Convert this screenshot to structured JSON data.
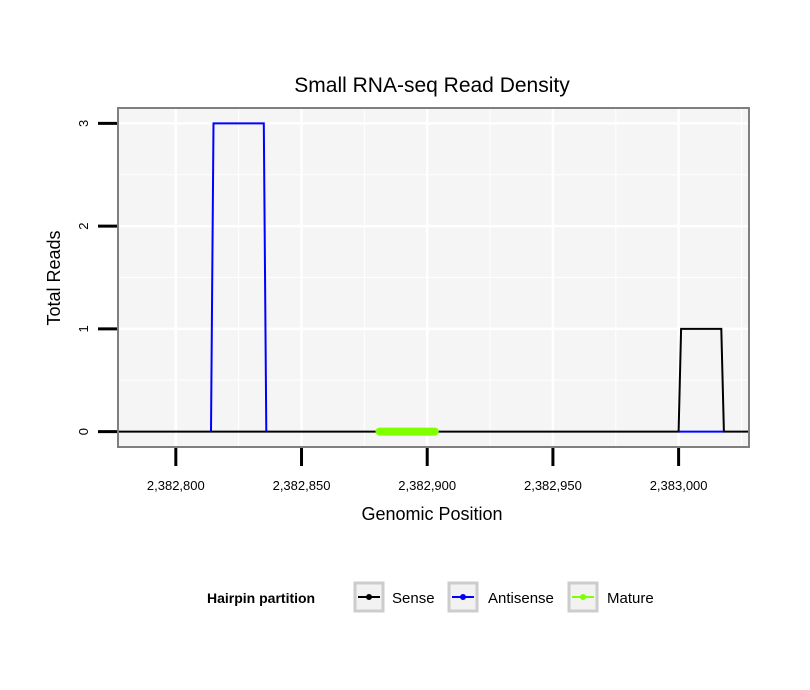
{
  "chart_data": {
    "type": "line",
    "title": "Small RNA-seq Read Density",
    "xlabel": "Genomic Position",
    "ylabel": "Total Reads",
    "xlim": [
      2382777,
      2383028
    ],
    "ylim": [
      -0.15,
      3.15
    ],
    "x_ticks": [
      2382800,
      2382850,
      2382900,
      2382950,
      2383000
    ],
    "x_tick_labels": [
      "2,382,800",
      "2,382,850",
      "2,382,900",
      "2,382,950",
      "2,383,000"
    ],
    "y_ticks": [
      0,
      1,
      2,
      3
    ],
    "y_tick_labels": [
      "0",
      "1",
      "2",
      "3"
    ],
    "grid": true,
    "legend": {
      "title": "Hairpin partition",
      "position": "bottom",
      "entries": [
        "Sense",
        "Antisense",
        "Mature"
      ]
    },
    "series": [
      {
        "name": "Sense",
        "color": "#000000",
        "x": [
          2382777,
          2383000,
          2383001,
          2383017,
          2383018,
          2383028
        ],
        "y": [
          0,
          0,
          1,
          1,
          0,
          0
        ]
      },
      {
        "name": "Antisense",
        "color": "#0000ff",
        "x": [
          2382814,
          2382815,
          2382835,
          2382836
        ],
        "y": [
          0,
          3,
          3,
          0
        ],
        "tail_x": [
          2383000,
          2383018
        ],
        "tail_y": [
          0,
          0
        ]
      },
      {
        "name": "Mature",
        "color": "#80ff00",
        "x": [
          2382881,
          2382903
        ],
        "y": [
          0,
          0
        ]
      }
    ]
  }
}
